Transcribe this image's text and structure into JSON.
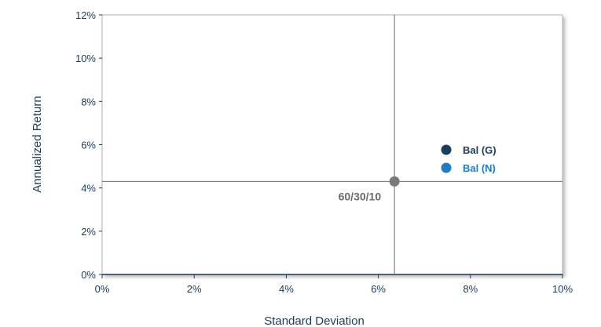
{
  "chart_data": {
    "type": "scatter",
    "title": "",
    "xlabel": "Standard Deviation",
    "ylabel": "Annualized Return",
    "xlim": [
      0,
      10
    ],
    "ylim": [
      0,
      12
    ],
    "x_ticks": [
      "0%",
      "2%",
      "4%",
      "6%",
      "8%",
      "10%"
    ],
    "y_ticks": [
      "0%",
      "2%",
      "4%",
      "6%",
      "8%",
      "10%",
      "12%"
    ],
    "grid": false,
    "legend": {
      "placement": "right",
      "entries": [
        {
          "name": "Bal (G)",
          "color": "#1b3d5c"
        },
        {
          "name": "Bal (N)",
          "color": "#1f7dc4"
        }
      ]
    },
    "points": [
      {
        "label": "60/30/10",
        "x": 6.35,
        "y": 4.3,
        "color": "#7a7a7a"
      }
    ],
    "crosshair": {
      "x": 6.35,
      "y": 4.3,
      "color": "#6e6e6e"
    },
    "colors": {
      "axis": "#1f3a56",
      "frame": "#9a9a9a",
      "text": "#1f3a56"
    }
  }
}
